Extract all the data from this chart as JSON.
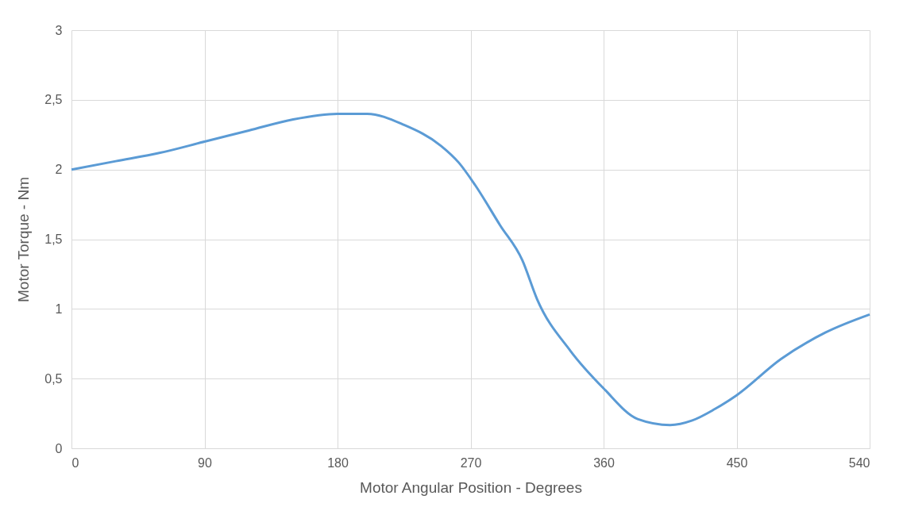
{
  "chart_data": {
    "type": "line",
    "xlabel": "Motor Angular Position - Degrees",
    "ylabel": "Motor Torque - Nm",
    "x": [
      0,
      30,
      60,
      90,
      120,
      150,
      180,
      200,
      225,
      250,
      262,
      273,
      290,
      305,
      315,
      337.5,
      360,
      383,
      405,
      420,
      435,
      450,
      480,
      510,
      540
    ],
    "series": [
      {
        "color": "#5b9bd5",
        "values": [
          2.0,
          2.06,
          2.12,
          2.2,
          2.28,
          2.36,
          2.4,
          2.4,
          2.32,
          2.17,
          2.05,
          1.89,
          1.6,
          1.35,
          1.07,
          0.7,
          0.43,
          0.21,
          0.167,
          0.2,
          0.28,
          0.38,
          0.64,
          0.83,
          0.96
        ]
      }
    ],
    "xlim": [
      0,
      540
    ],
    "xticks": [
      0,
      90,
      180,
      270,
      360,
      450,
      540
    ],
    "ylim": [
      0,
      3
    ],
    "yticks": [
      0,
      {
        "value": 0.5,
        "label": "0,5"
      },
      1,
      {
        "value": 1.5,
        "label": "1,5"
      },
      2,
      {
        "value": 2.5,
        "label": "2,5"
      },
      3
    ],
    "grid": true,
    "marker": "none",
    "line_style": "solid"
  }
}
